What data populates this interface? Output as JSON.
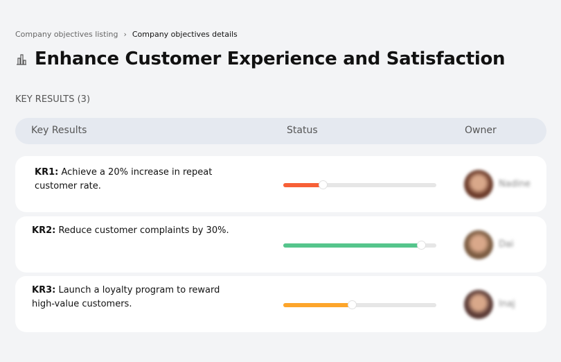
{
  "breadcrumb": {
    "parent": "Company objectives listing",
    "separator": "›",
    "current": "Company objectives details"
  },
  "page": {
    "icon": "building-icon",
    "title": "Enhance Customer Experience and Satisfaction"
  },
  "section": {
    "label": "KEY RESULTS (3)"
  },
  "table": {
    "headers": [
      "Key Results",
      "Status",
      "Owner"
    ]
  },
  "rows": [
    {
      "code": "KR1:",
      "text": "Achieve a 20% increase in repeat customer rate.",
      "progress": 26,
      "color": "#f76037",
      "owner": "Nadine",
      "avatar_color": "#6b3b2a"
    },
    {
      "code": "KR2:",
      "text": "Reduce customer complaints by 30%.",
      "progress": 90,
      "color": "#55c58c",
      "owner": "Dai",
      "avatar_color": "#7a5a40"
    },
    {
      "code": "KR3:",
      "text": "Launch a loyalty program to reward high-value customers.",
      "progress": 45,
      "color": "#fda52b",
      "owner": "Inaj",
      "avatar_color": "#5a3a35"
    }
  ]
}
